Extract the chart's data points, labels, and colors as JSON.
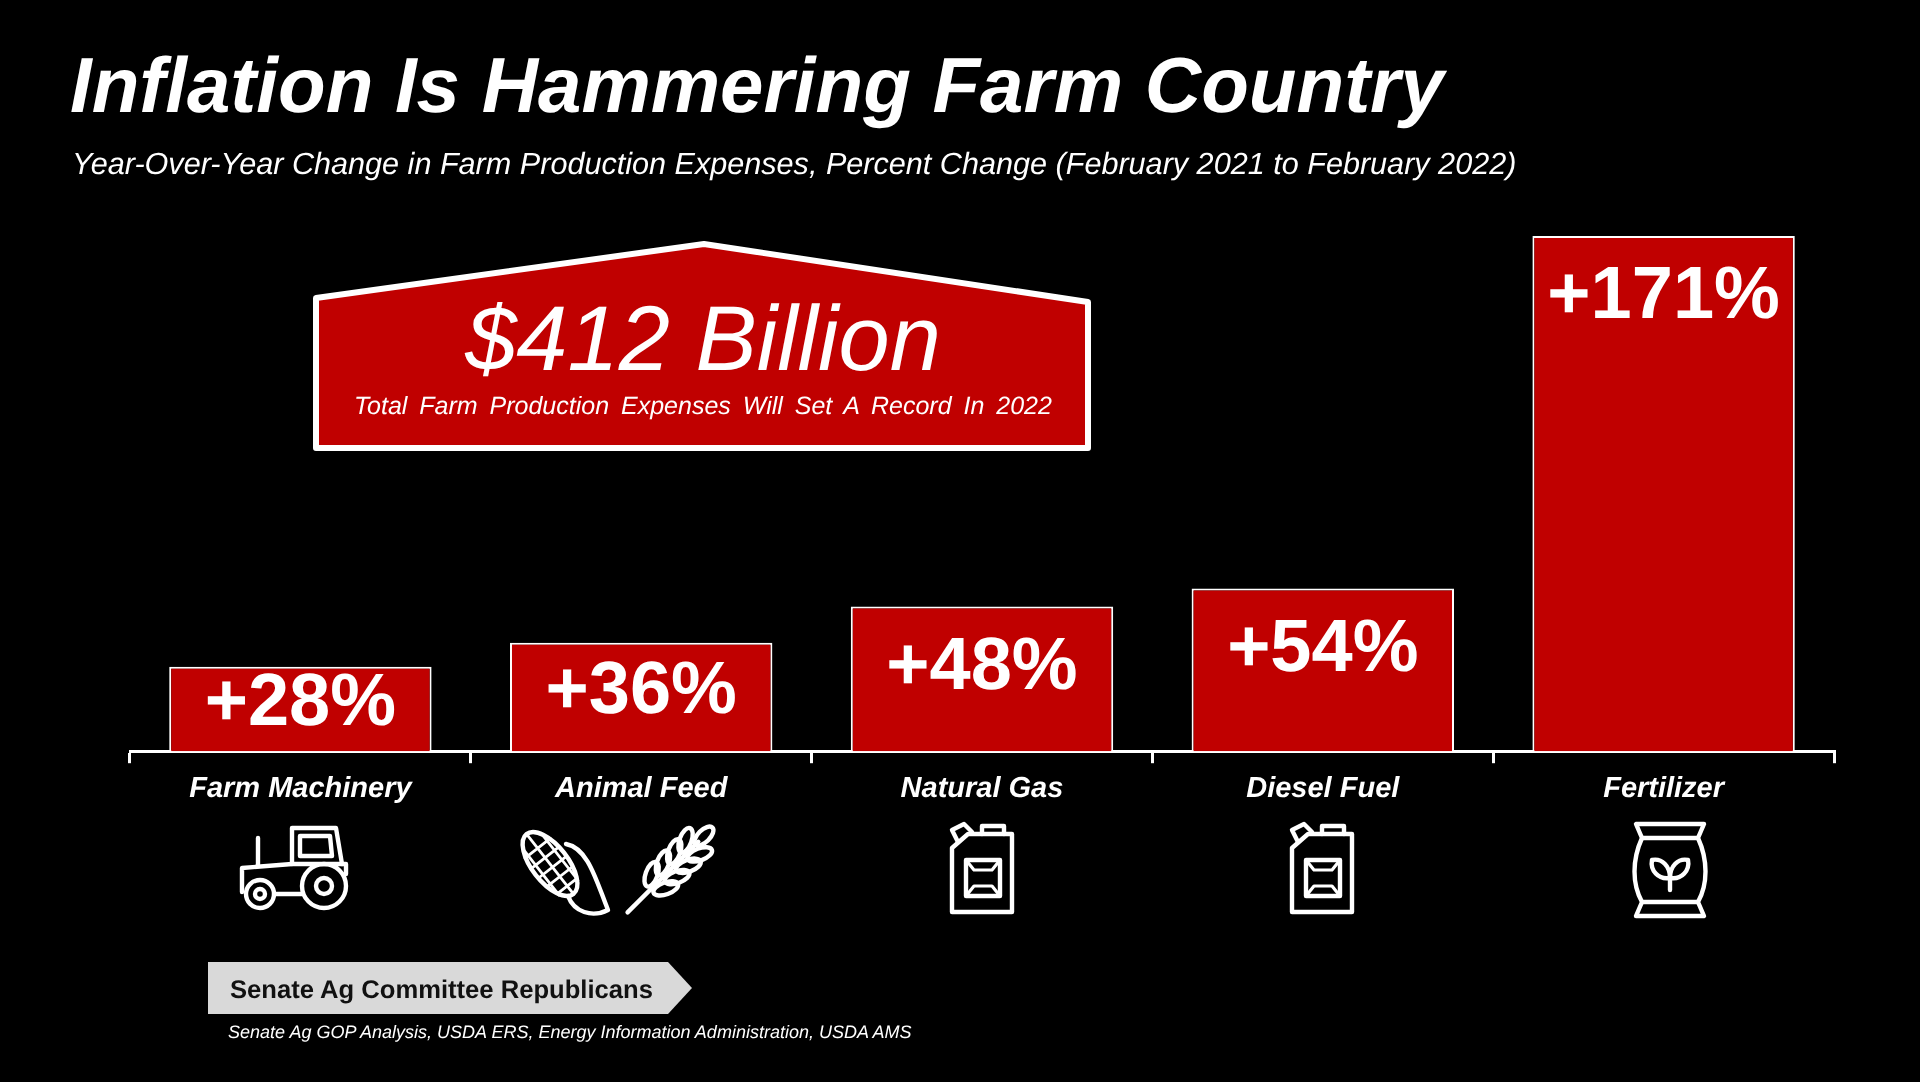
{
  "chart_data": {
    "type": "bar",
    "title": "Inflation Is Hammering Farm Country",
    "subtitle": "Year-Over-Year Change in Farm Production Expenses, Percent Change (February 2021 to February 2022)",
    "categories": [
      "Farm Machinery",
      "Animal Feed",
      "Natural Gas",
      "Diesel Fuel",
      "Fertilizer"
    ],
    "values": [
      28,
      36,
      48,
      54,
      171
    ],
    "value_labels": [
      "+28%",
      "+36%",
      "+48%",
      "+54%",
      "+171%"
    ],
    "color": "#c00000",
    "annotations": [
      "$412 Billion",
      "Total Farm Production Expenses Will Set A Record In 2022",
      "Senate Ag Committee Republicans",
      "Senate Ag GOP Analysis, USDA ERS, Energy Information Administration, USDA AMS"
    ],
    "tick_labels": "x",
    "grid": false,
    "legend": false
  }
}
